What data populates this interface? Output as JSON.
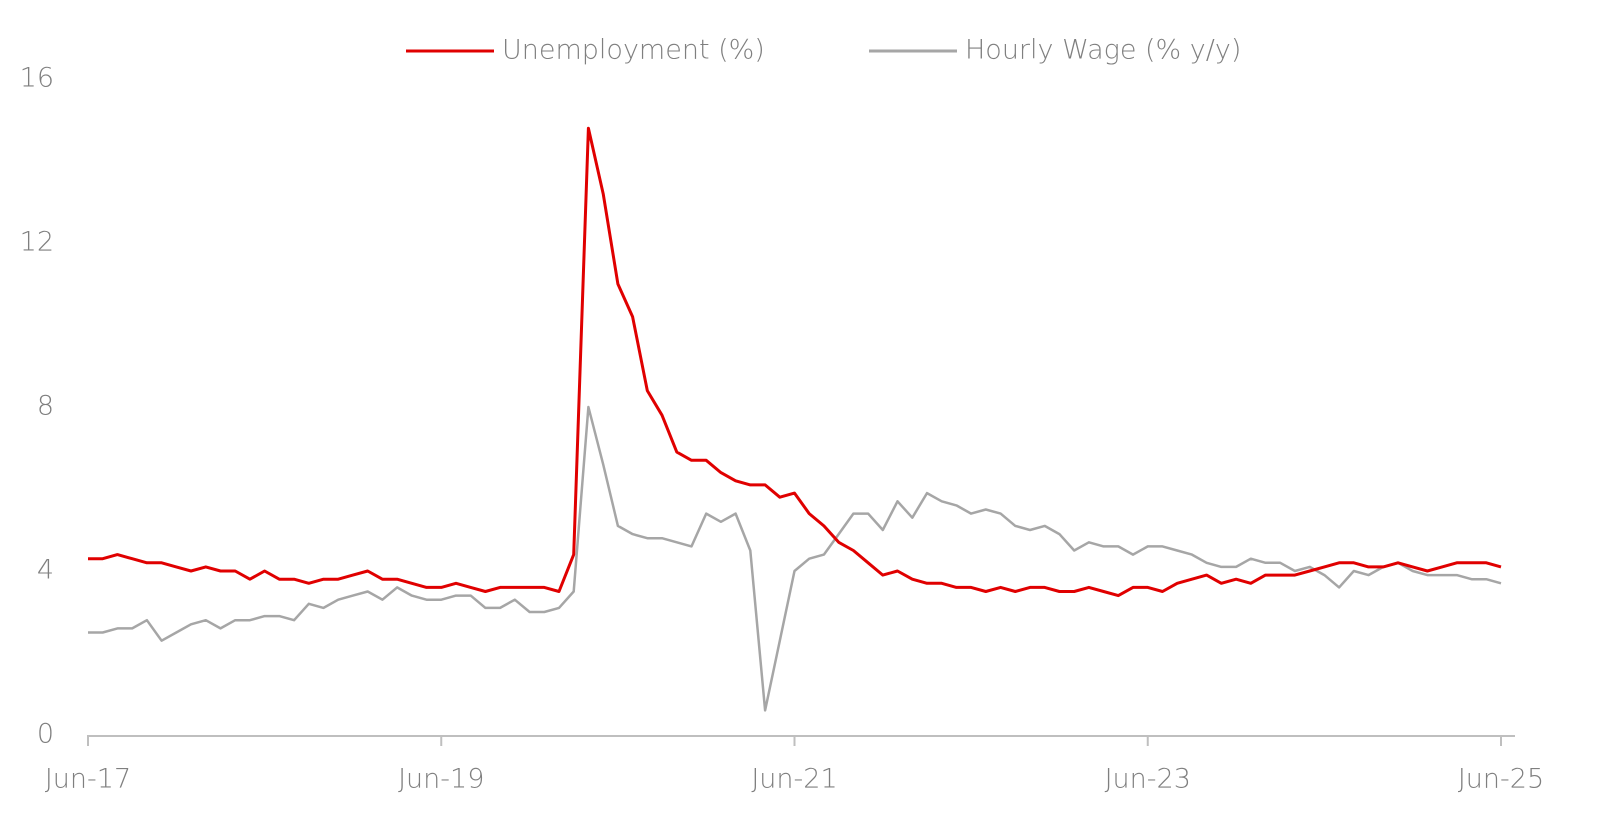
{
  "chart_data": {
    "type": "line",
    "categories": [
      "Jun-17",
      null,
      null,
      null,
      null,
      null,
      null,
      null,
      null,
      null,
      null,
      null,
      null,
      null,
      null,
      null,
      null,
      null,
      null,
      null,
      null,
      null,
      null,
      null,
      "Jun-19",
      null,
      null,
      null,
      null,
      null,
      null,
      null,
      null,
      null,
      null,
      null,
      null,
      null,
      null,
      null,
      null,
      null,
      null,
      null,
      null,
      null,
      null,
      null,
      "Jun-21",
      null,
      null,
      null,
      null,
      null,
      null,
      null,
      null,
      null,
      null,
      null,
      null,
      null,
      null,
      null,
      null,
      null,
      null,
      null,
      null,
      null,
      null,
      null,
      "Jun-23",
      null,
      null,
      null,
      null,
      null,
      null,
      null,
      null,
      null,
      null,
      null,
      null,
      null,
      null,
      null,
      null,
      null,
      null,
      null,
      null,
      null,
      null,
      null,
      "Jun-25"
    ],
    "series": [
      {
        "name": "Unemployment (%)",
        "color": "#e00000",
        "values": [
          4.3,
          4.3,
          4.4,
          4.3,
          4.2,
          4.2,
          4.1,
          4.0,
          4.1,
          4.0,
          4.0,
          3.8,
          4.0,
          3.8,
          3.8,
          3.7,
          3.8,
          3.8,
          3.9,
          4.0,
          3.8,
          3.8,
          3.7,
          3.6,
          3.6,
          3.7,
          3.6,
          3.5,
          3.6,
          3.6,
          3.6,
          3.6,
          3.5,
          4.4,
          14.8,
          13.2,
          11.0,
          10.2,
          8.4,
          7.8,
          6.9,
          6.7,
          6.7,
          6.4,
          6.2,
          6.1,
          6.1,
          5.8,
          5.9,
          5.4,
          5.1,
          4.7,
          4.5,
          4.2,
          3.9,
          4.0,
          3.8,
          3.7,
          3.7,
          3.6,
          3.6,
          3.5,
          3.6,
          3.5,
          3.6,
          3.6,
          3.5,
          3.5,
          3.6,
          3.5,
          3.4,
          3.6,
          3.6,
          3.5,
          3.7,
          3.8,
          3.9,
          3.7,
          3.8,
          3.7,
          3.9,
          3.9,
          3.9,
          4.0,
          4.1,
          4.2,
          4.2,
          4.1,
          4.1,
          4.2,
          4.1,
          4.0,
          4.1,
          4.2,
          4.2,
          4.2,
          4.1
        ]
      },
      {
        "name": "Hourly Wage (% y/y)",
        "color": "#a6a6a6",
        "values": [
          2.5,
          2.5,
          2.6,
          2.6,
          2.8,
          2.3,
          2.5,
          2.7,
          2.8,
          2.6,
          2.8,
          2.8,
          2.9,
          2.9,
          2.8,
          3.2,
          3.1,
          3.3,
          3.4,
          3.5,
          3.3,
          3.6,
          3.4,
          3.3,
          3.3,
          3.4,
          3.4,
          3.1,
          3.1,
          3.3,
          3.0,
          3.0,
          3.1,
          3.5,
          8.0,
          6.6,
          5.1,
          4.9,
          4.8,
          4.8,
          4.7,
          4.6,
          5.4,
          5.2,
          5.4,
          4.5,
          0.6,
          2.3,
          4.0,
          4.3,
          4.4,
          4.9,
          5.4,
          5.4,
          5.0,
          5.7,
          5.3,
          5.9,
          5.7,
          5.6,
          5.4,
          5.5,
          5.4,
          5.1,
          5.0,
          5.1,
          4.9,
          4.5,
          4.7,
          4.6,
          4.6,
          4.4,
          4.6,
          4.6,
          4.5,
          4.4,
          4.2,
          4.1,
          4.1,
          4.3,
          4.2,
          4.2,
          4.0,
          4.1,
          3.9,
          3.6,
          4.0,
          3.9,
          4.1,
          4.2,
          4.0,
          3.9,
          3.9,
          3.9,
          3.8,
          3.8,
          3.7
        ]
      }
    ],
    "ylim": [
      0,
      16
    ],
    "yticks": [
      0,
      4,
      8,
      12,
      16
    ],
    "grid": false
  }
}
